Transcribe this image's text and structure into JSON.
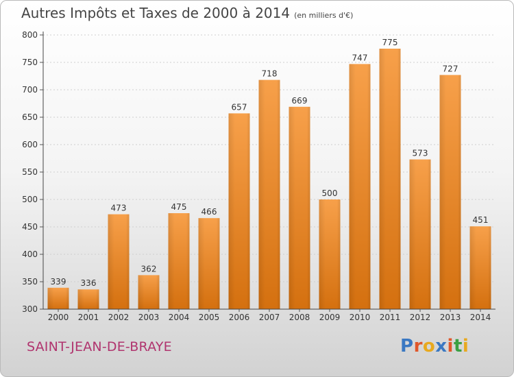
{
  "title": "Autres Impôts et Taxes de 2000 à 2014",
  "subtitle": "(en milliers d'€)",
  "city": "SAINT-JEAN-DE-BRAYE",
  "logo": "Proxiti",
  "colors": {
    "bar_light": "#f7a04a",
    "bar_dark": "#d4700f",
    "logo": [
      "#3a78c2",
      "#e0572b",
      "#e8a91f",
      "#3a78c2",
      "#e0572b",
      "#3aa043",
      "#e8a91f"
    ]
  },
  "chart_data": {
    "type": "bar",
    "categories": [
      "2000",
      "2001",
      "2002",
      "2003",
      "2004",
      "2005",
      "2006",
      "2007",
      "2008",
      "2009",
      "2010",
      "2011",
      "2012",
      "2013",
      "2014"
    ],
    "values": [
      339,
      336,
      473,
      362,
      475,
      466,
      657,
      718,
      669,
      500,
      747,
      775,
      573,
      727,
      451
    ],
    "ylim": [
      300,
      800
    ],
    "yticks": [
      300,
      350,
      400,
      450,
      500,
      550,
      600,
      650,
      700,
      750,
      800
    ],
    "grid": "horizontal"
  }
}
